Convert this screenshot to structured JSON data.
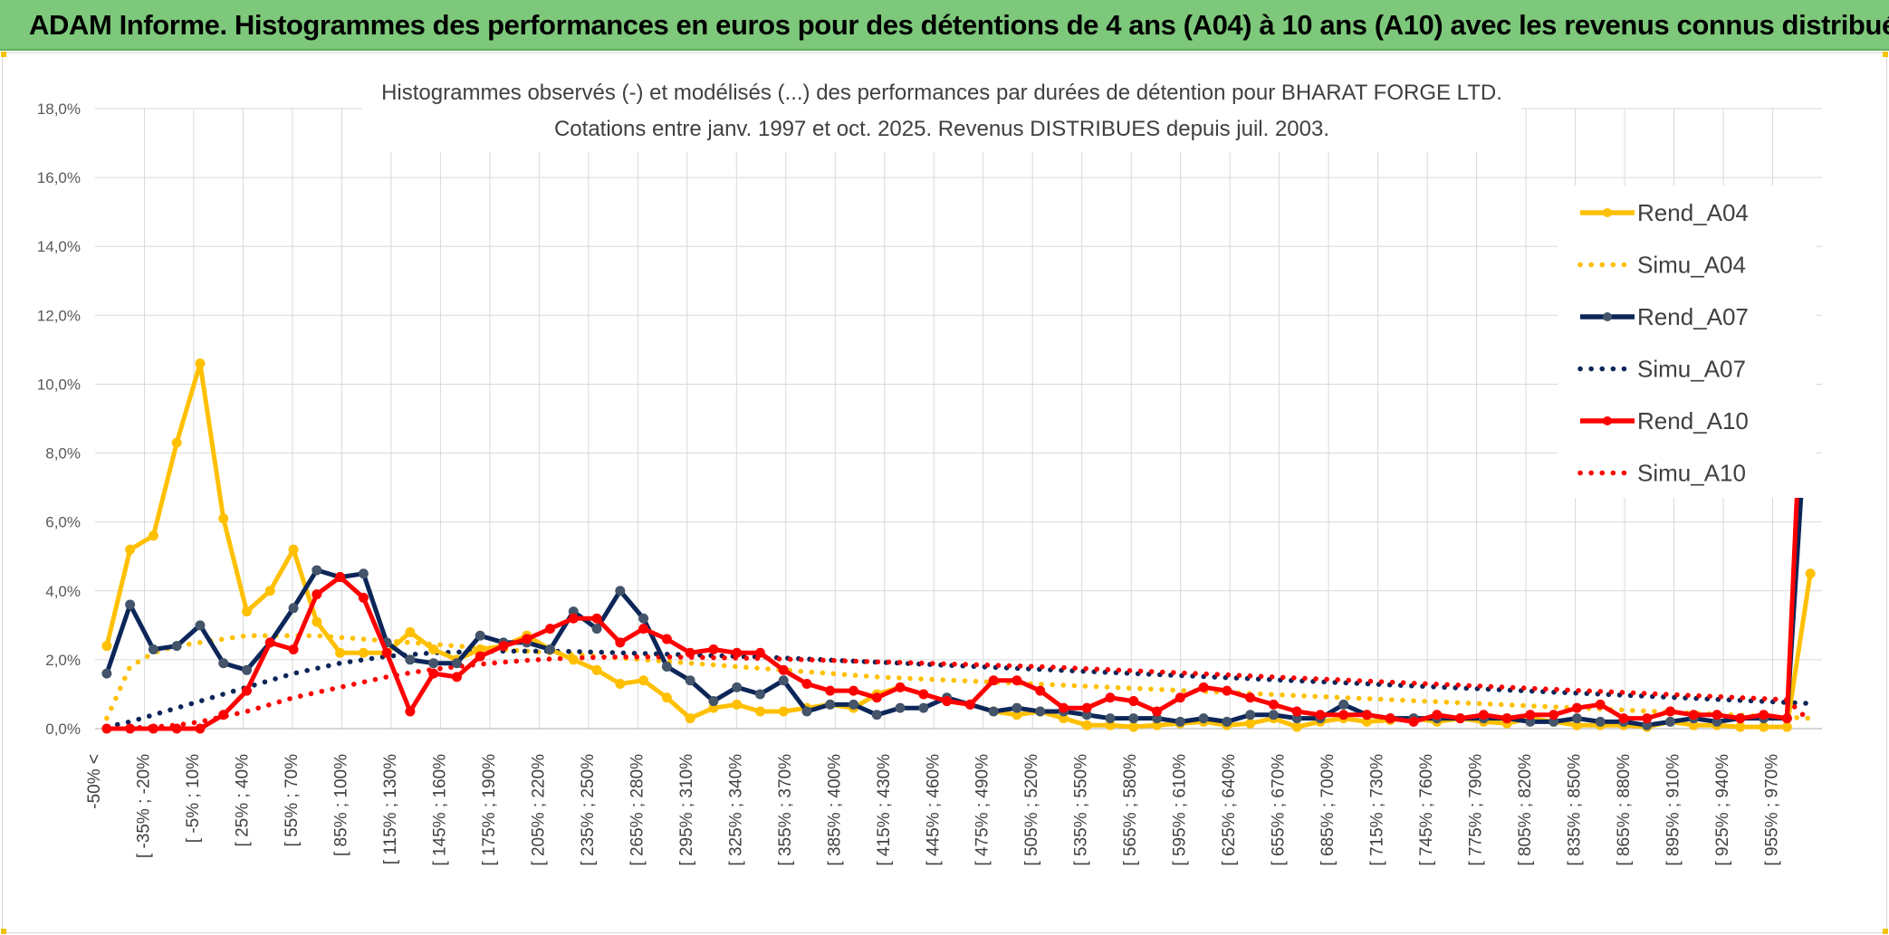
{
  "banner": {
    "title": "ADAM Informe. Histogrammes des performances en euros pour des détentions de 4 ans (A04) à 10 ans (A10) avec les revenus connus distribués"
  },
  "chart_data": {
    "type": "line",
    "title": "Histogrammes observés (-) et modélisés (...) des performances par durées de détention pour BHARAT FORGE LTD.",
    "subtitle": "Cotations entre janv. 1997 et oct. 2025. Revenus DISTRIBUES depuis juil. 2003.",
    "xlabel": "",
    "ylabel": "",
    "ylim": [
      0,
      18
    ],
    "y_ticks": [
      "0,0%",
      "2,0%",
      "4,0%",
      "6,0%",
      "8,0%",
      "10,0%",
      "12,0%",
      "14,0%",
      "16,0%",
      "18,0%"
    ],
    "grid": true,
    "legend_position": "top-right",
    "x_tick_labels": [
      "-50% <",
      "[ -35% ; -20%",
      "[ -5% ; 10%",
      "[ 25% ; 40%",
      "[ 55% ; 70%",
      "[ 85% ; 100%",
      "[ 115% ; 130%",
      "[ 145% ; 160%",
      "[ 175% ; 190%",
      "[ 205% ; 220%",
      "[ 235% ; 250%",
      "[ 265% ; 280%",
      "[ 295% ; 310%",
      "[ 325% ; 340%",
      "[ 355% ; 370%",
      "[ 385% ; 400%",
      "[ 415% ; 430%",
      "[ 445% ; 460%",
      "[ 475% ; 490%",
      "[ 505% ; 520%",
      "[ 535% ; 550%",
      "[ 565% ; 580%",
      "[ 595% ; 610%",
      "[ 625% ; 640%",
      "[ 655% ; 670%",
      "[ 685% ; 700%",
      "[ 715% ; 730%",
      "[ 745% ; 760%",
      "[ 775% ; 790%",
      "[ 805% ; 820%",
      "[ 835% ; 850%",
      "[ 865% ; 880%",
      "[ 895% ; 910%",
      "[ 925% ; 940%",
      "[ 955% ; 970%"
    ],
    "series": [
      {
        "name": "Rend_A04",
        "style": "solid",
        "color": "#FFC000",
        "marker": true,
        "values": [
          2.4,
          5.2,
          5.6,
          8.3,
          10.6,
          6.1,
          3.4,
          4.0,
          5.2,
          3.1,
          2.2,
          2.2,
          2.2,
          2.8,
          2.3,
          2.0,
          2.3,
          2.4,
          2.7,
          2.3,
          2.0,
          1.7,
          1.3,
          1.4,
          0.9,
          0.3,
          0.6,
          0.7,
          0.5,
          0.5,
          0.6,
          0.7,
          0.6,
          1.0,
          1.2,
          1.0,
          0.8,
          0.7,
          0.5,
          0.4,
          0.5,
          0.3,
          0.1,
          0.1,
          0.05,
          0.1,
          0.15,
          0.2,
          0.1,
          0.15,
          0.3,
          0.05,
          0.2,
          0.3,
          0.2,
          0.25,
          0.3,
          0.2,
          0.3,
          0.2,
          0.15,
          0.3,
          0.2,
          0.1,
          0.1,
          0.1,
          0.05,
          0.2,
          0.1,
          0.1,
          0.05,
          0.05,
          0.05,
          4.5
        ]
      },
      {
        "name": "Simu_A04",
        "style": "dotted",
        "color": "#FFC000",
        "marker": false,
        "values": [
          0.3,
          1.8,
          2.2,
          2.4,
          2.5,
          2.6,
          2.7,
          2.7,
          2.7,
          2.7,
          2.65,
          2.6,
          2.55,
          2.5,
          2.45,
          2.4,
          2.35,
          2.3,
          2.25,
          2.2,
          2.15,
          2.1,
          2.05,
          2.0,
          1.95,
          1.9,
          1.85,
          1.8,
          1.75,
          1.7,
          1.65,
          1.6,
          1.55,
          1.5,
          1.47,
          1.44,
          1.41,
          1.38,
          1.35,
          1.32,
          1.29,
          1.26,
          1.23,
          1.2,
          1.17,
          1.14,
          1.11,
          1.08,
          1.05,
          1.02,
          0.99,
          0.96,
          0.93,
          0.9,
          0.87,
          0.84,
          0.81,
          0.78,
          0.75,
          0.72,
          0.69,
          0.66,
          0.63,
          0.6,
          0.57,
          0.54,
          0.51,
          0.48,
          0.45,
          0.42,
          0.39,
          0.36,
          0.33,
          0.3
        ]
      },
      {
        "name": "Rend_A07",
        "style": "solid",
        "color": "#0D2659",
        "marker": true,
        "values": [
          1.6,
          3.6,
          2.3,
          2.4,
          3.0,
          1.9,
          1.7,
          2.5,
          3.5,
          4.6,
          4.4,
          4.5,
          2.5,
          2.0,
          1.9,
          1.9,
          2.7,
          2.5,
          2.5,
          2.3,
          3.4,
          2.9,
          4.0,
          3.2,
          1.8,
          1.4,
          0.8,
          1.2,
          1.0,
          1.4,
          0.5,
          0.7,
          0.7,
          0.4,
          0.6,
          0.6,
          0.9,
          0.7,
          0.5,
          0.6,
          0.5,
          0.5,
          0.4,
          0.3,
          0.3,
          0.3,
          0.2,
          0.3,
          0.2,
          0.4,
          0.4,
          0.3,
          0.3,
          0.7,
          0.4,
          0.3,
          0.3,
          0.3,
          0.3,
          0.3,
          0.3,
          0.2,
          0.2,
          0.3,
          0.2,
          0.2,
          0.1,
          0.2,
          0.3,
          0.2,
          0.3,
          0.3,
          0.3,
          11.0
        ]
      },
      {
        "name": "Simu_A07",
        "style": "dotted",
        "color": "#0D2659",
        "marker": false,
        "values": [
          0.05,
          0.2,
          0.4,
          0.6,
          0.8,
          1.0,
          1.2,
          1.4,
          1.6,
          1.75,
          1.9,
          2.0,
          2.1,
          2.15,
          2.2,
          2.22,
          2.24,
          2.25,
          2.25,
          2.25,
          2.24,
          2.22,
          2.2,
          2.18,
          2.16,
          2.14,
          2.12,
          2.1,
          2.08,
          2.05,
          2.02,
          1.99,
          1.96,
          1.93,
          1.9,
          1.87,
          1.84,
          1.81,
          1.78,
          1.75,
          1.72,
          1.69,
          1.66,
          1.63,
          1.6,
          1.57,
          1.54,
          1.51,
          1.48,
          1.45,
          1.42,
          1.39,
          1.36,
          1.33,
          1.3,
          1.27,
          1.24,
          1.21,
          1.18,
          1.15,
          1.12,
          1.09,
          1.06,
          1.03,
          1.0,
          0.97,
          0.94,
          0.91,
          0.88,
          0.85,
          0.82,
          0.79,
          0.76,
          0.73
        ]
      },
      {
        "name": "Rend_A10",
        "style": "solid",
        "color": "#FF0000",
        "marker": true,
        "values": [
          0.0,
          0.0,
          0.0,
          0.0,
          0.0,
          0.4,
          1.1,
          2.5,
          2.3,
          3.9,
          4.4,
          3.8,
          2.2,
          0.5,
          1.6,
          1.5,
          2.1,
          2.4,
          2.6,
          2.9,
          3.2,
          3.2,
          2.5,
          2.9,
          2.6,
          2.2,
          2.3,
          2.2,
          2.2,
          1.7,
          1.3,
          1.1,
          1.1,
          0.9,
          1.2,
          1.0,
          0.8,
          0.7,
          1.4,
          1.4,
          1.1,
          0.6,
          0.6,
          0.9,
          0.8,
          0.5,
          0.9,
          1.2,
          1.1,
          0.9,
          0.7,
          0.5,
          0.4,
          0.4,
          0.4,
          0.3,
          0.2,
          0.4,
          0.3,
          0.4,
          0.3,
          0.4,
          0.4,
          0.6,
          0.7,
          0.3,
          0.3,
          0.5,
          0.4,
          0.4,
          0.3,
          0.4,
          0.3,
          15.4
        ]
      },
      {
        "name": "Simu_A10",
        "style": "dotted",
        "color": "#FF0000",
        "marker": false,
        "values": [
          0.0,
          0.02,
          0.05,
          0.1,
          0.2,
          0.35,
          0.5,
          0.7,
          0.9,
          1.05,
          1.2,
          1.35,
          1.5,
          1.62,
          1.72,
          1.8,
          1.87,
          1.93,
          1.98,
          2.02,
          2.05,
          2.07,
          2.08,
          2.08,
          2.08,
          2.07,
          2.06,
          2.05,
          2.04,
          2.02,
          2.0,
          1.98,
          1.96,
          1.94,
          1.92,
          1.9,
          1.88,
          1.86,
          1.84,
          1.82,
          1.8,
          1.77,
          1.74,
          1.71,
          1.68,
          1.65,
          1.62,
          1.59,
          1.56,
          1.53,
          1.5,
          1.47,
          1.44,
          1.41,
          1.38,
          1.35,
          1.32,
          1.29,
          1.26,
          1.23,
          1.2,
          1.17,
          1.14,
          1.11,
          1.08,
          1.05,
          1.02,
          0.99,
          0.96,
          0.93,
          0.9,
          0.87,
          0.84,
          0.2
        ]
      }
    ]
  }
}
